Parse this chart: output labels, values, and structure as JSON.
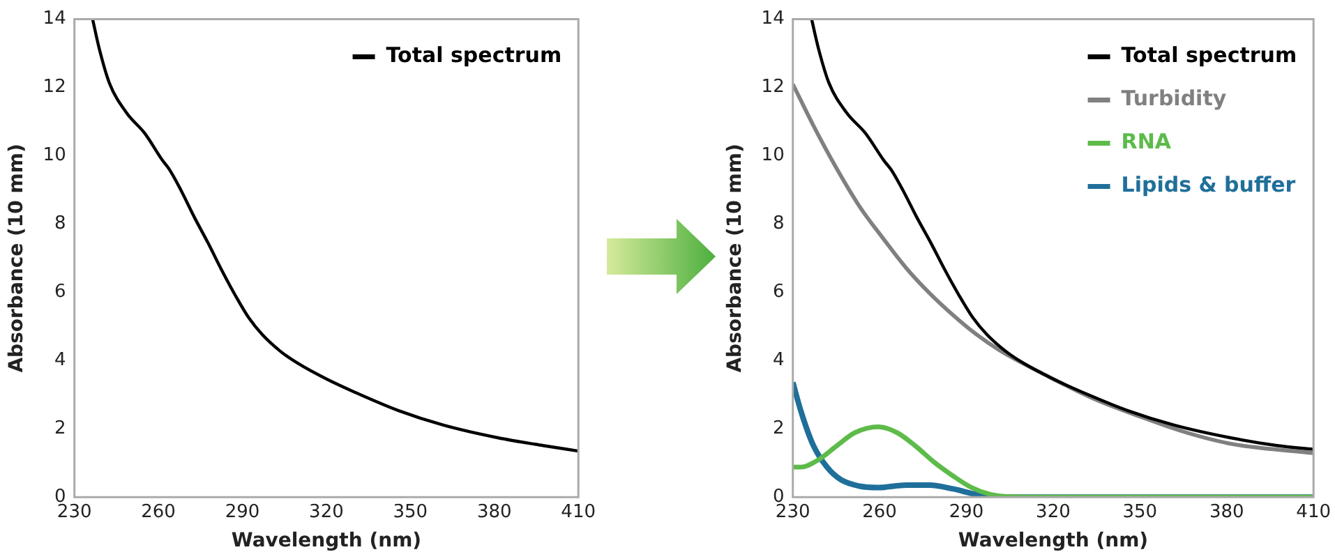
{
  "chart_data": [
    {
      "type": "line",
      "xlabel": "Wavelength (nm)",
      "ylabel": "Absorbance (10 mm)",
      "xlim": [
        230,
        410
      ],
      "xticks": [
        230,
        260,
        290,
        320,
        350,
        380,
        410
      ],
      "ylim": [
        0,
        14
      ],
      "yticks": [
        0,
        2,
        4,
        6,
        8,
        10,
        12,
        14
      ],
      "grid": false,
      "legend": "top right",
      "marker": "none",
      "series": [
        {
          "name": "Total spectrum",
          "color": "#000000",
          "x": [
            236.5,
            238.9,
            242.5,
            248.6,
            255.1,
            261.5,
            264,
            268,
            272.9,
            277.7,
            282.6,
            287.4,
            292.3,
            297.1,
            303.6,
            310,
            319.8,
            332.7,
            345.6,
            361.8,
            381.2,
            397.4,
            410
          ],
          "values": [
            14,
            13.13,
            12.13,
            11.26,
            10.66,
            9.86,
            9.59,
            9.0,
            8.19,
            7.45,
            6.65,
            5.92,
            5.25,
            4.76,
            4.27,
            3.91,
            3.47,
            2.98,
            2.54,
            2.11,
            1.74,
            1.51,
            1.35
          ]
        }
      ]
    },
    {
      "type": "line",
      "xlabel": "Wavelength (nm)",
      "ylabel": "Absorbance (10 mm)",
      "xlim": [
        230,
        410
      ],
      "xticks": [
        230,
        260,
        290,
        320,
        350,
        380,
        410
      ],
      "ylim": [
        0,
        14
      ],
      "yticks": [
        0,
        2,
        4,
        6,
        8,
        10,
        12,
        14
      ],
      "grid": false,
      "legend": "top right",
      "marker": "none",
      "series": [
        {
          "name": "Total spectrum",
          "color": "#000000",
          "x": [
            236.5,
            238.9,
            242.5,
            248.6,
            255.1,
            261.5,
            264,
            268,
            272.9,
            277.7,
            282.6,
            287.4,
            292.3,
            297.1,
            303.6,
            310,
            319.8,
            332.7,
            345.6,
            361.8,
            381.2,
            397.4,
            410
          ],
          "values": [
            14,
            13.13,
            12.13,
            11.26,
            10.66,
            9.86,
            9.59,
            9.0,
            8.19,
            7.45,
            6.65,
            5.92,
            5.25,
            4.76,
            4.27,
            3.91,
            3.47,
            2.98,
            2.54,
            2.11,
            1.74,
            1.51,
            1.4
          ]
        },
        {
          "name": "Turbidity",
          "color": "#808080",
          "x": [
            230,
            236.9,
            245,
            253.1,
            261.2,
            269.2,
            277.3,
            285.4,
            293.4,
            301.5,
            317.7,
            333.8,
            350,
            366.1,
            382.2,
            410
          ],
          "values": [
            12.1,
            10.92,
            9.65,
            8.51,
            7.58,
            6.71,
            5.97,
            5.33,
            4.77,
            4.3,
            3.56,
            2.89,
            2.36,
            1.89,
            1.55,
            1.29
          ]
        },
        {
          "name": "RNA",
          "color": "#5dbb4a",
          "x": [
            230,
            232.9,
            238.6,
            245,
            251.5,
            259.5,
            266,
            272.5,
            278.9,
            285.4,
            291.8,
            298.3,
            304.8,
            320,
            410
          ],
          "values": [
            0.88,
            0.88,
            1.08,
            1.49,
            1.89,
            2.06,
            1.89,
            1.49,
            1.02,
            0.62,
            0.28,
            0.08,
            0.01,
            0,
            0
          ]
        },
        {
          "name": "Lipids & buffer",
          "color": "#1f6f9a",
          "x": [
            230,
            232.9,
            236.9,
            241.8,
            246.6,
            253.1,
            259.5,
            269.2,
            277.3,
            285.4,
            293.4,
            300,
            410
          ],
          "values": [
            3.36,
            2.49,
            1.55,
            0.88,
            0.51,
            0.32,
            0.28,
            0.35,
            0.35,
            0.24,
            0.08,
            0,
            0
          ]
        }
      ]
    }
  ]
}
